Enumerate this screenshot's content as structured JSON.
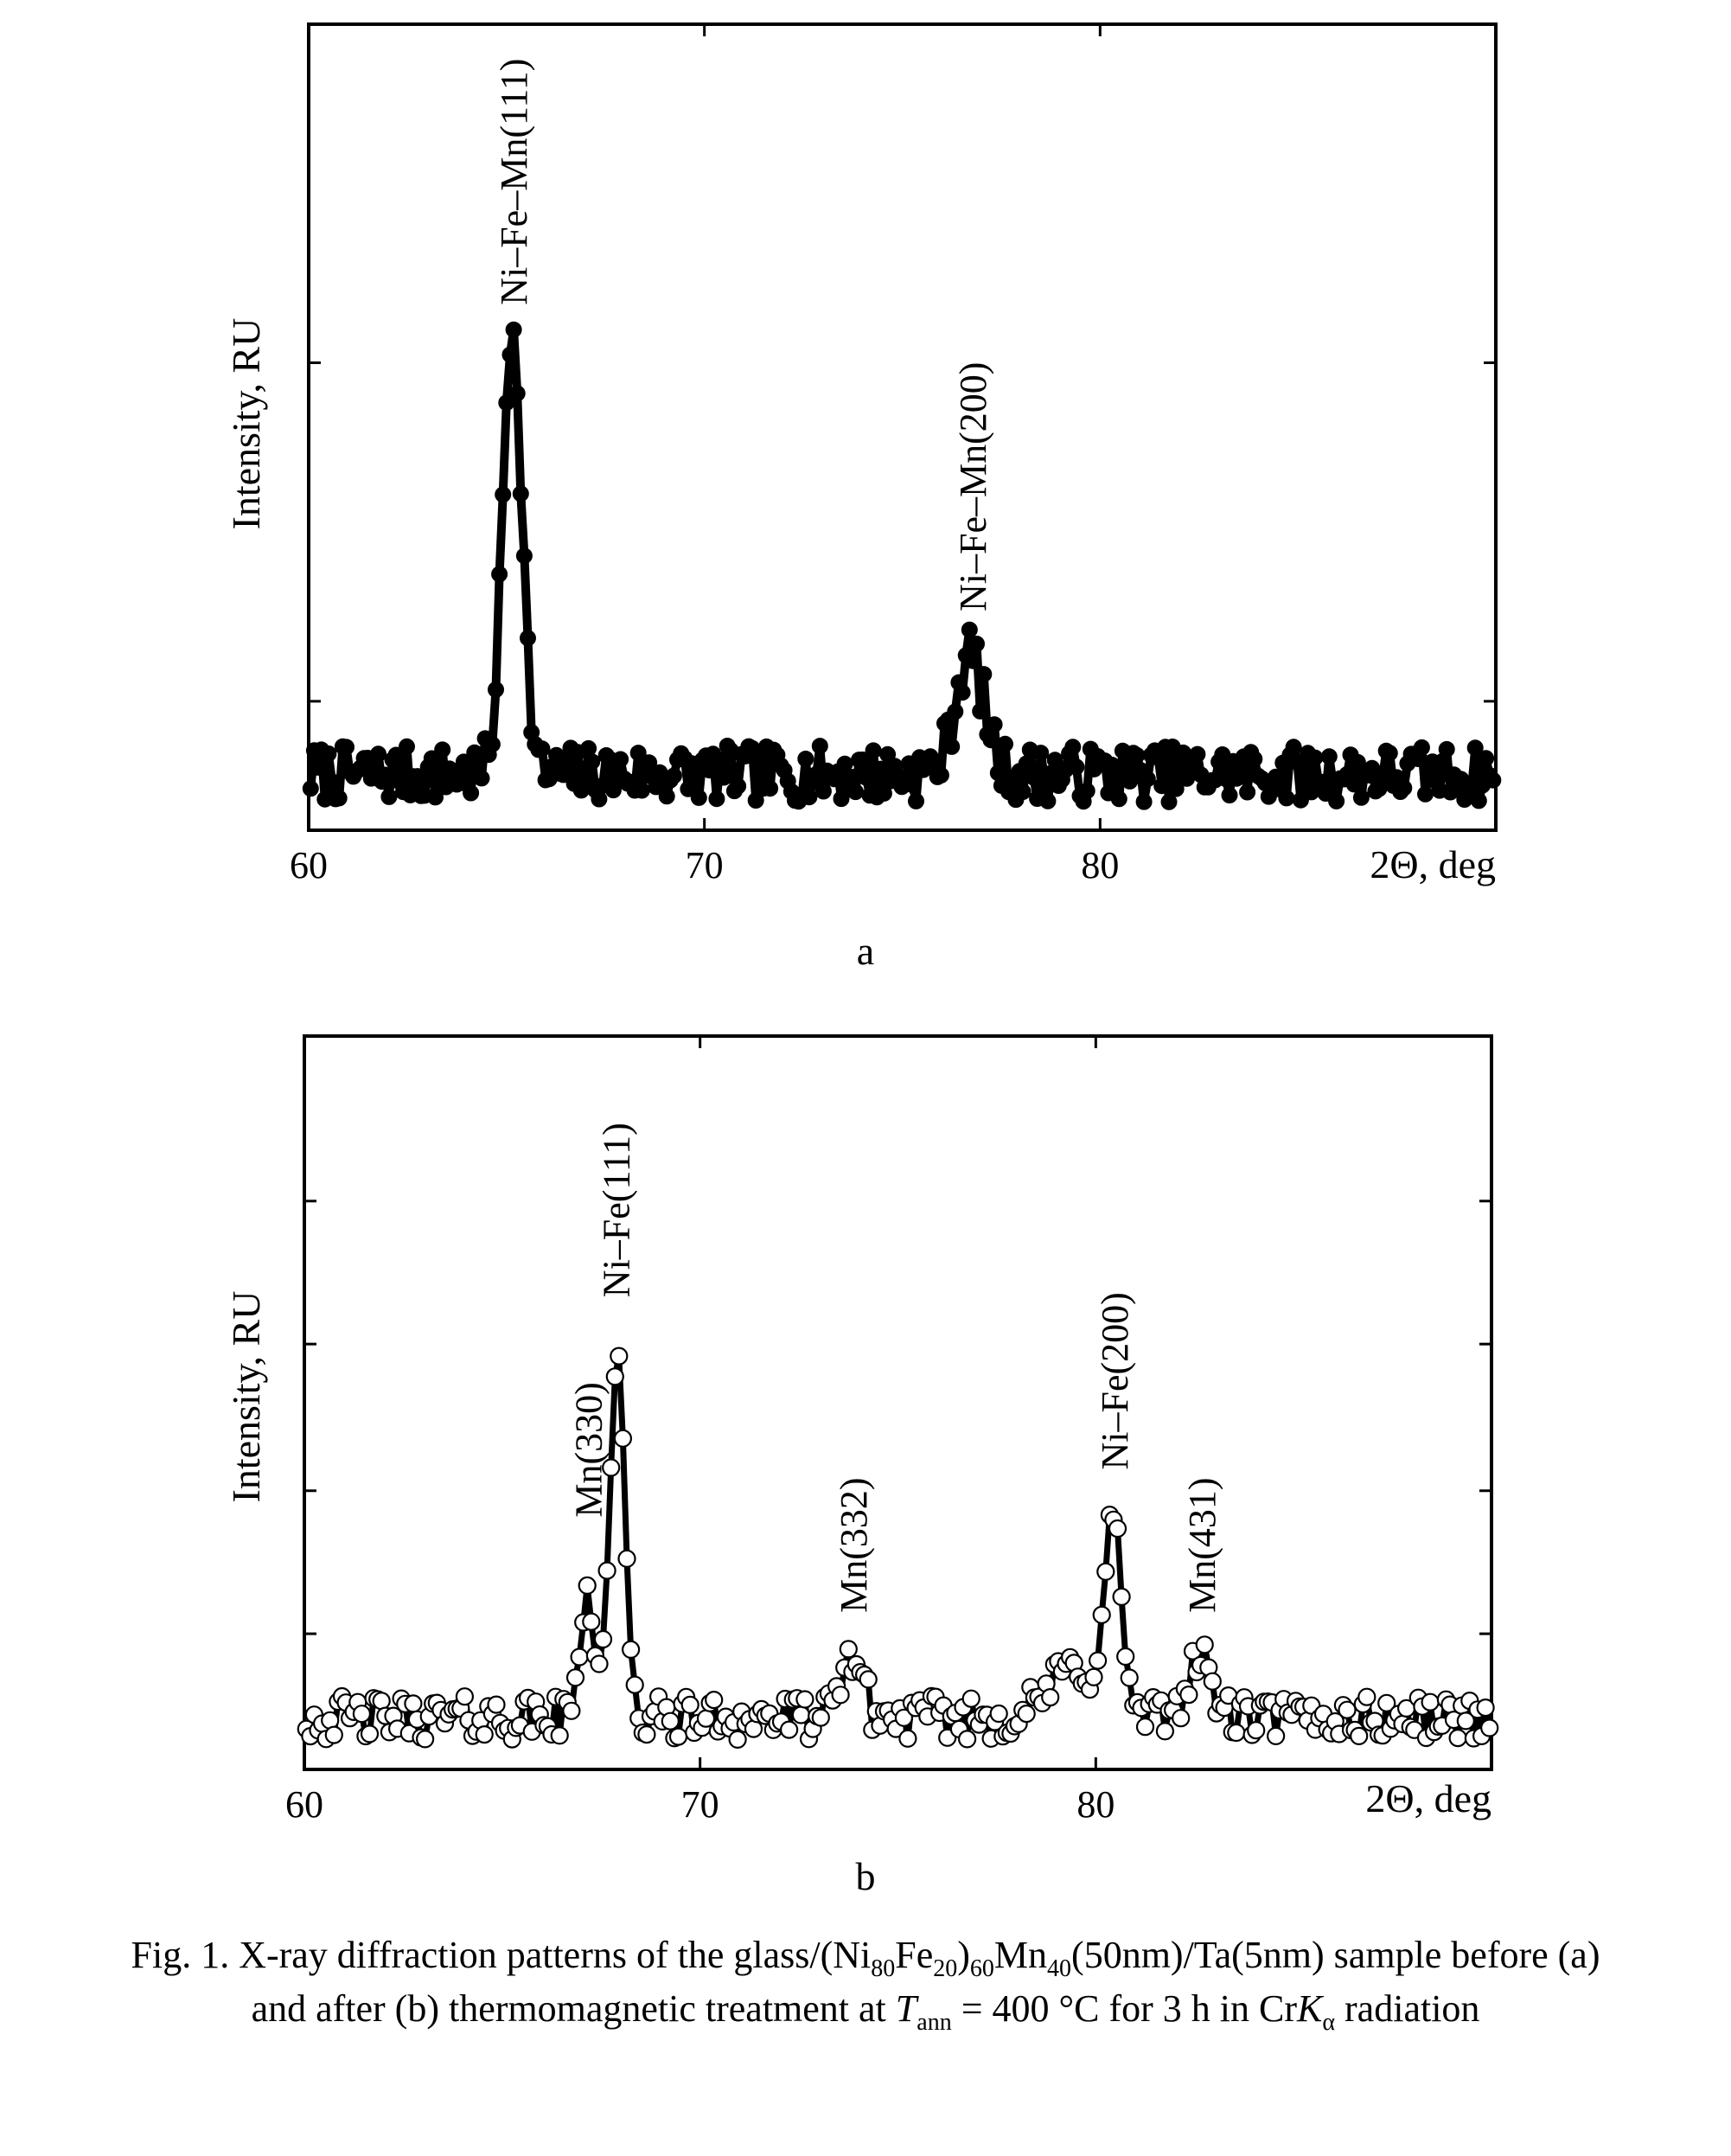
{
  "chart_data": [
    {
      "type": "scatter",
      "panel": "a",
      "marker": "filled-circle",
      "connected": true,
      "xlabel": "2Θ, deg",
      "ylabel": "Intensity, RU",
      "xlim": [
        60,
        90
      ],
      "ylim": [
        0,
        100
      ],
      "xticks": [
        60,
        70,
        80
      ],
      "ytick_marks": [
        16,
        58
      ],
      "peaks": [
        {
          "label": "Ni–Fe–Mn(111)",
          "x": 65.2,
          "y": 63
        },
        {
          "label": "Ni–Fe–Mn(200)",
          "x": 76.8,
          "y": 25
        }
      ],
      "background": {
        "mean": 7,
        "noise": 3.5
      },
      "profile": [
        {
          "x0": 65.15,
          "h": 56,
          "w": 0.34
        },
        {
          "x0": 76.7,
          "h": 15,
          "w": 0.5
        }
      ]
    },
    {
      "type": "scatter",
      "panel": "b",
      "marker": "open-circle",
      "connected": true,
      "xlabel": "2Θ, deg",
      "ylabel": "Intensity, RU",
      "xlim": [
        60,
        90
      ],
      "ylim": [
        0,
        100
      ],
      "xticks": [
        60,
        70,
        80
      ],
      "ytick_marks": [
        18.5,
        38,
        58,
        77.5
      ],
      "peaks": [
        {
          "label": "Mn(330)",
          "x": 67.2,
          "y": 32
        },
        {
          "label": "Ni–Fe(111)",
          "x": 67.9,
          "y": 62
        },
        {
          "label": "Mn(332)",
          "x": 73.9,
          "y": 19
        },
        {
          "label": "Ni–Fe(200)",
          "x": 80.5,
          "y": 38.5
        },
        {
          "label": "Mn(431)",
          "x": 82.7,
          "y": 19
        }
      ],
      "background": {
        "mean": 7,
        "noise": 3.0
      },
      "profile": [
        {
          "x0": 67.15,
          "h": 18,
          "w": 0.25
        },
        {
          "x0": 67.9,
          "h": 50,
          "w": 0.26
        },
        {
          "x0": 73.85,
          "h": 9,
          "w": 0.35
        },
        {
          "x0": 80.45,
          "h": 26,
          "w": 0.28
        },
        {
          "x0": 79.5,
          "h": 7,
          "w": 0.9
        },
        {
          "x0": 82.6,
          "h": 8,
          "w": 0.45
        }
      ]
    }
  ],
  "panel_labels": {
    "a": "a",
    "b": "b"
  },
  "caption": {
    "line1_prefix": "Fig. 1. X-ray diffraction patterns of the glass/(Ni",
    "sub_ni": "80",
    "fe": "Fe",
    "sub_fe": "20",
    "close": ")",
    "sub_60": "60",
    "mn": "Mn",
    "sub_40": "40",
    "line1_suffix": "(50nm)/Ta(5nm) sample before (a)",
    "line2_prefix": "and after (b) thermomagnetic treatment at ",
    "t_symbol": "T",
    "t_sub": "ann",
    "line2_mid": " = 400 °C  for 3 h in Cr",
    "k_symbol": "K",
    "k_sub": "α",
    "line2_suffix": " radiation"
  }
}
